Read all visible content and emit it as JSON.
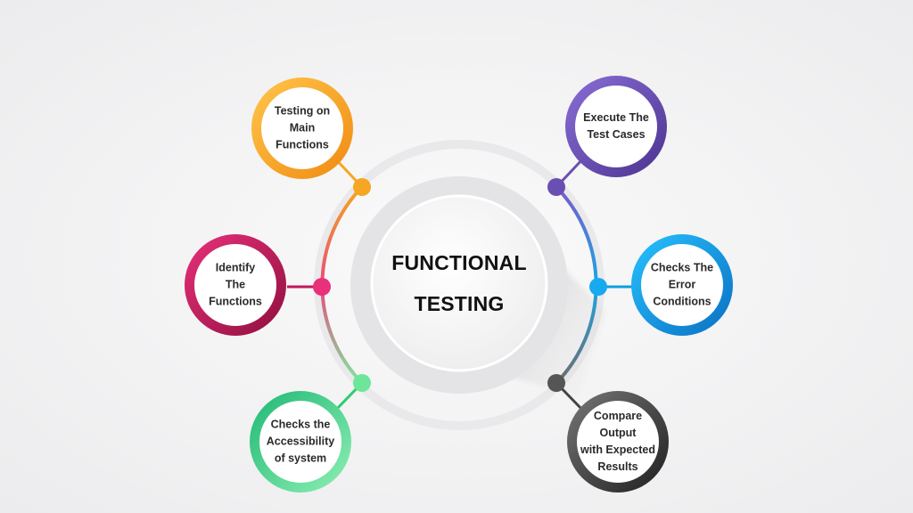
{
  "title_lines": [
    "FUNCTIONAL",
    "TESTING"
  ],
  "nodes": [
    {
      "id": "testing-main-functions",
      "lines": [
        "Testing on",
        "Main",
        "Functions"
      ],
      "color": "#f5a623"
    },
    {
      "id": "identify-functions",
      "lines": [
        "Identify",
        "The",
        "Functions"
      ],
      "color": "#c2185b"
    },
    {
      "id": "accessibility",
      "lines": [
        "Checks the",
        "Accessibility",
        "of system"
      ],
      "color": "#2ecc71"
    },
    {
      "id": "execute-test-cases",
      "lines": [
        "Execute The",
        "Test Cases"
      ],
      "color": "#6a4fb3"
    },
    {
      "id": "error-conditions",
      "lines": [
        "Checks The",
        "Error",
        "Conditions"
      ],
      "color": "#0b9fe0"
    },
    {
      "id": "compare-output",
      "lines": [
        "Compare",
        "Output",
        "with Expected",
        "Results"
      ],
      "color": "#444444"
    }
  ]
}
